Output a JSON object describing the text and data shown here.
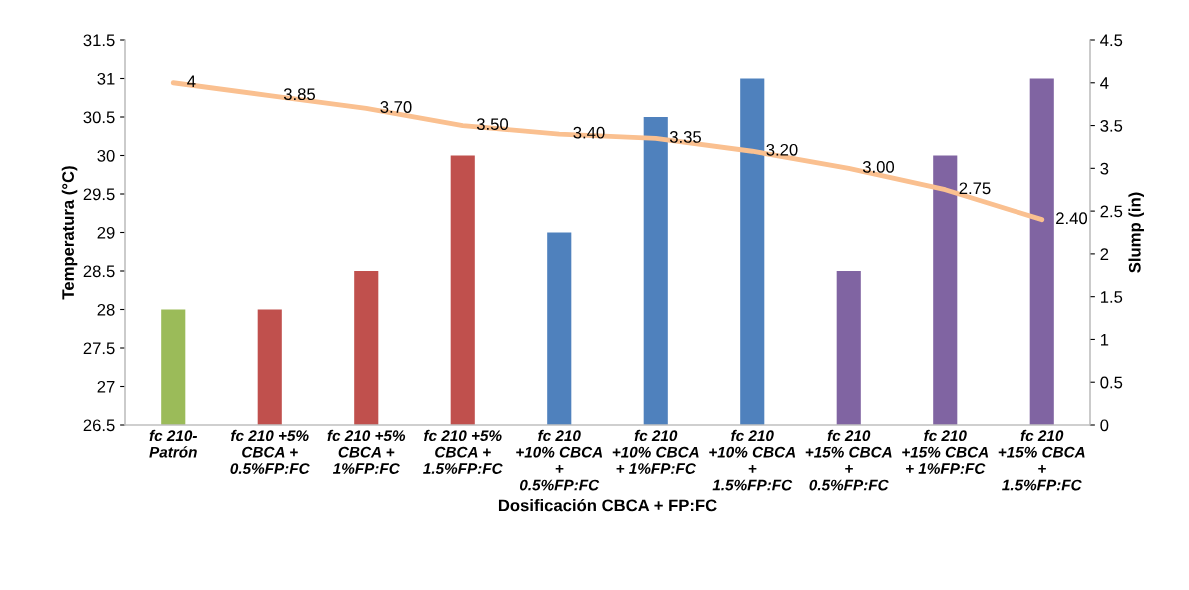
{
  "chart_data": {
    "type": "bar",
    "xlabel": "Dosificación CBCA + FP:FC",
    "ylabel": "Temperatura (°C)",
    "y2label": "Slump (in)",
    "categories": [
      "fc 210-\nPatrón",
      "fc 210 +5%\nCBCA +\n0.5%FP:FC",
      "fc 210 +5%\nCBCA +\n1%FP:FC",
      "fc 210 +5%\nCBCA +\n1.5%FP:FC",
      "fc 210\n+10% CBCA\n+\n0.5%FP:FC",
      "fc 210\n+10% CBCA\n+ 1%FP:FC",
      "fc 210\n+10% CBCA\n+\n1.5%FP:FC",
      "fc 210\n+15% CBCA\n+\n0.5%FP:FC",
      "fc 210\n+15% CBCA\n+ 1%FP:FC",
      "fc 210\n+15% CBCA\n+\n1.5%FP:FC"
    ],
    "series": [
      {
        "values": [
          28,
          28,
          28.5,
          30,
          29,
          30.5,
          31,
          28.5,
          30,
          31
        ],
        "colors": [
          "#9bbb59",
          "#c0504d",
          "#c0504d",
          "#c0504d",
          "#4f81bd",
          "#4f81bd",
          "#4f81bd",
          "#8064a2",
          "#8064a2",
          "#8064a2"
        ]
      },
      {
        "type": "line",
        "axis": "y2",
        "color": "#fac090",
        "values": [
          4,
          3.85,
          3.7,
          3.5,
          3.4,
          3.35,
          3.2,
          3.0,
          2.75,
          2.4
        ],
        "value_labels": [
          "4",
          "3.85",
          "3.70",
          "3.50",
          "3.40",
          "3.35",
          "3.20",
          "3.00",
          "2.75",
          "2.40"
        ]
      }
    ],
    "ylim": [
      26.5,
      31.5
    ],
    "yticks": [
      26.5,
      27,
      27.5,
      28,
      28.5,
      29,
      29.5,
      30,
      30.5,
      31,
      31.5
    ],
    "y2lim": [
      0,
      4.5
    ],
    "y2ticks": [
      0,
      0.5,
      1,
      1.5,
      2,
      2.5,
      3,
      3.5,
      4,
      4.5
    ],
    "grid": false,
    "legend": false
  }
}
